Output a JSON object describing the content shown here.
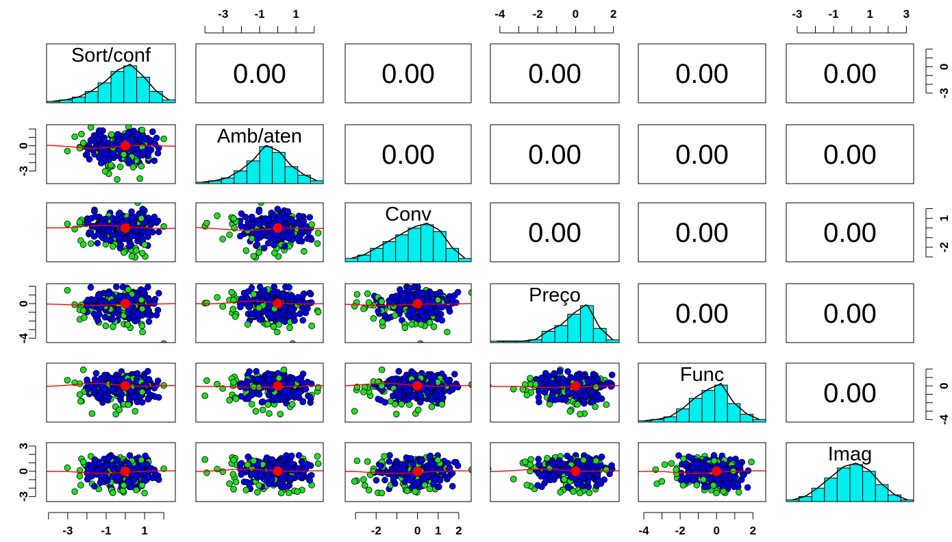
{
  "chart_data": {
    "type": "scatter-matrix",
    "title": "",
    "variables": [
      "Sort/conf",
      "Amb/aten",
      "Conv",
      "Preço",
      "Func",
      "Imag"
    ],
    "correlations": [
      [
        "0.00",
        "0.00",
        "0.00",
        "0.00",
        "0.00"
      ],
      [
        "0.00",
        "0.00",
        "0.00",
        "0.00"
      ],
      [
        "0.00",
        "0.00",
        "0.00"
      ],
      [
        "0.00",
        "0.00"
      ],
      [
        "0.00"
      ]
    ],
    "axis_ranges": [
      [
        -4.1,
        2.6
      ],
      [
        -4.5,
        2.5
      ],
      [
        -3.5,
        2.6
      ],
      [
        -4.5,
        2.3
      ],
      [
        -4.3,
        2.7
      ],
      [
        -3.6,
        3.4
      ]
    ],
    "axis_ticks": {
      "Sort/conf": {
        "side": "bottom",
        "ticks": [
          -4,
          -3,
          -2,
          -1,
          0,
          1,
          2
        ],
        "labels": [
          "-3",
          "-1",
          "1"
        ]
      },
      "Amb/aten": {
        "side": "top",
        "ticks": [
          -4,
          -3,
          -2,
          -1,
          0,
          1,
          2
        ],
        "labels": [
          "-3",
          "-1",
          "1"
        ]
      },
      "Conv": {
        "side": "bottom",
        "ticks": [
          -3,
          -2,
          -1,
          0,
          1,
          2
        ],
        "labels": [
          "-2",
          "0",
          "1",
          "2"
        ]
      },
      "Preço": {
        "side": "top",
        "ticks": [
          -4,
          -3,
          -2,
          -1,
          0,
          1,
          2
        ],
        "labels": [
          "-4",
          "-2",
          "0",
          "2"
        ]
      },
      "Func": {
        "side": "bottom",
        "ticks": [
          -4,
          -3,
          -2,
          -1,
          0,
          1,
          2
        ],
        "labels": [
          "-4",
          "-2",
          "0",
          "2"
        ]
      },
      "Imag": {
        "side": "top",
        "ticks": [
          -3,
          -2,
          -1,
          0,
          1,
          2,
          3
        ],
        "labels": [
          "-3",
          "-1",
          "1",
          "3"
        ]
      }
    },
    "axis_ticks_y": {
      "Sort/conf": {
        "side": "right",
        "ticks": [
          -3,
          -2,
          -1,
          0,
          1,
          2
        ],
        "labels": [
          "-3",
          "0"
        ]
      },
      "Amb/aten": {
        "side": "left",
        "ticks": [
          -3,
          -2,
          -1,
          0,
          1,
          2
        ],
        "labels": [
          "-3",
          "0"
        ]
      },
      "Conv": {
        "side": "right",
        "ticks": [
          -3,
          -2,
          -1,
          0,
          1,
          2
        ],
        "labels": [
          "-2",
          "1"
        ]
      },
      "Preço": {
        "side": "left",
        "ticks": [
          -4,
          -3,
          -2,
          -1,
          0,
          1,
          2
        ],
        "labels": [
          "-4",
          "0"
        ]
      },
      "Func": {
        "side": "right",
        "ticks": [
          -4,
          -3,
          -2,
          -1,
          0,
          1,
          2
        ],
        "labels": [
          "-4",
          "0"
        ]
      },
      "Imag": {
        "side": "left",
        "ticks": [
          -3,
          -2,
          -1,
          0,
          1,
          2,
          3
        ],
        "labels": [
          "-3",
          "0",
          "3"
        ]
      }
    },
    "histograms": {
      "Sort/conf": [
        1,
        2,
        4,
        8,
        14,
        22,
        26,
        18,
        8,
        2
      ],
      "Amb/aten": [
        1,
        2,
        4,
        9,
        16,
        26,
        22,
        12,
        6,
        2
      ],
      "Conv": [
        2,
        4,
        8,
        12,
        16,
        20,
        22,
        18,
        8,
        2
      ],
      "Preço": [
        1,
        1,
        1,
        2,
        8,
        12,
        20,
        26,
        10,
        2
      ],
      "Func": [
        1,
        2,
        4,
        10,
        18,
        24,
        28,
        14,
        6,
        2
      ],
      "Imag": [
        1,
        3,
        8,
        14,
        20,
        22,
        18,
        10,
        4,
        1
      ]
    },
    "grid": false,
    "point_colors": {
      "main": "#0000e6",
      "outlier": "#22dd22"
    },
    "smooth_color": "#ff0000",
    "hist_fill": "#00eeee",
    "n_points": 300
  }
}
